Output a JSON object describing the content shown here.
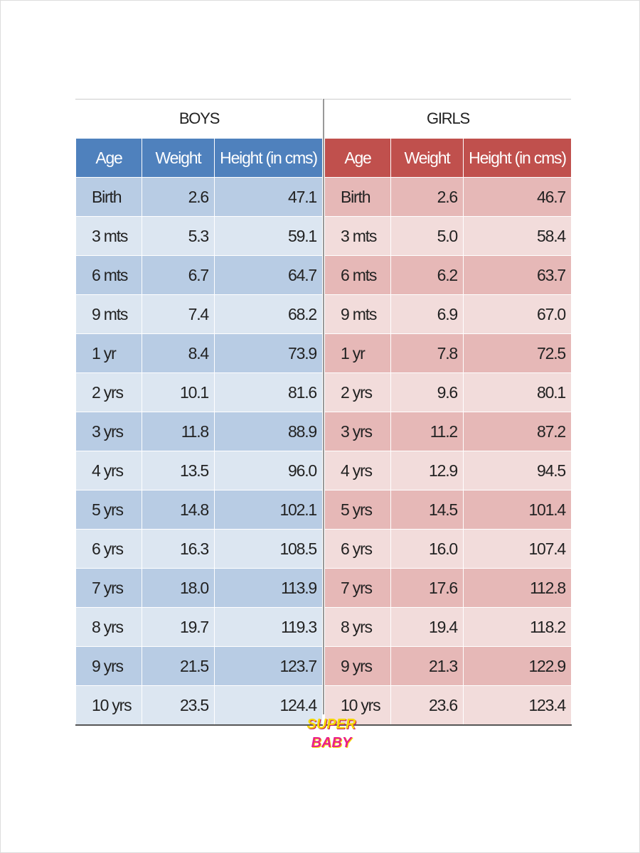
{
  "boys": {
    "title": "BOYS",
    "columns": [
      "Age",
      "Weight",
      "Height (in cms)"
    ],
    "rows": [
      [
        "Birth",
        "2.6",
        "47.1"
      ],
      [
        "3 mts",
        "5.3",
        "59.1"
      ],
      [
        "6 mts",
        "6.7",
        "64.7"
      ],
      [
        "9 mts",
        "7.4",
        "68.2"
      ],
      [
        "1 yr",
        "8.4",
        "73.9"
      ],
      [
        "2 yrs",
        "10.1",
        "81.6"
      ],
      [
        "3 yrs",
        "11.8",
        "88.9"
      ],
      [
        "4 yrs",
        "13.5",
        "96.0"
      ],
      [
        "5 yrs",
        "14.8",
        "102.1"
      ],
      [
        "6 yrs",
        "16.3",
        "108.5"
      ],
      [
        "7 yrs",
        "18.0",
        "113.9"
      ],
      [
        "8 yrs",
        "19.7",
        "119.3"
      ],
      [
        "9 yrs",
        "21.5",
        "123.7"
      ],
      [
        "10 yrs",
        "23.5",
        "124.4"
      ]
    ]
  },
  "girls": {
    "title": "GIRLS",
    "columns": [
      "Age",
      "Weight",
      "Height (in cms)"
    ],
    "rows": [
      [
        "Birth",
        "2.6",
        "46.7"
      ],
      [
        "3 mts",
        "5.0",
        "58.4"
      ],
      [
        "6 mts",
        "6.2",
        "63.7"
      ],
      [
        "9 mts",
        "6.9",
        "67.0"
      ],
      [
        "1 yr",
        "7.8",
        "72.5"
      ],
      [
        "2 yrs",
        "9.6",
        "80.1"
      ],
      [
        "3 yrs",
        "11.2",
        "87.2"
      ],
      [
        "4 yrs",
        "12.9",
        "94.5"
      ],
      [
        "5 yrs",
        "14.5",
        "101.4"
      ],
      [
        "6 yrs",
        "16.0",
        "107.4"
      ],
      [
        "7 yrs",
        "17.6",
        "112.8"
      ],
      [
        "8 yrs",
        "19.4",
        "118.2"
      ],
      [
        "9 yrs",
        "21.3",
        "122.9"
      ],
      [
        "10 yrs",
        "23.6",
        "123.4"
      ]
    ]
  },
  "logo": {
    "line1": "SUPER",
    "line2": "BABY"
  }
}
